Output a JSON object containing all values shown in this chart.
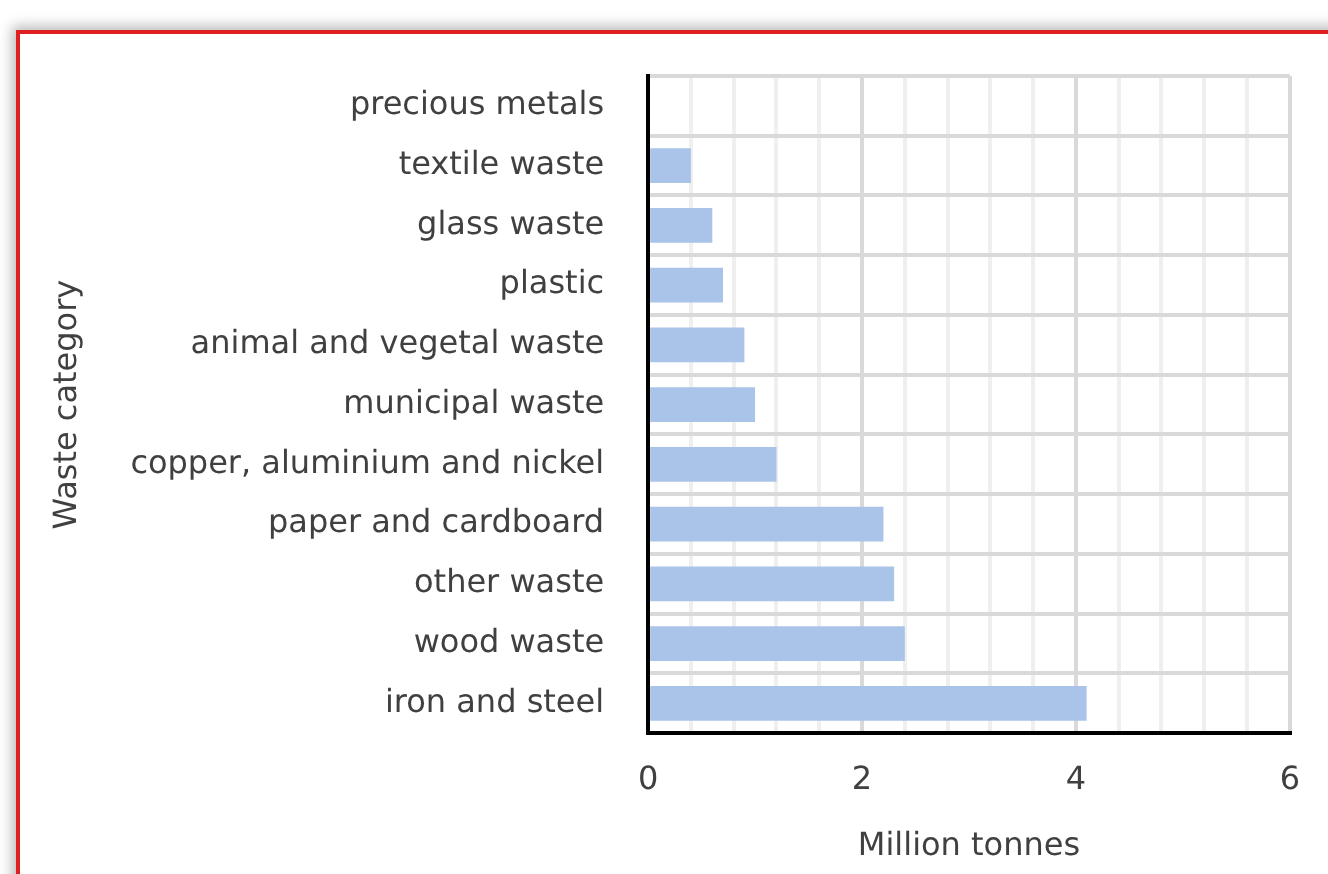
{
  "chart_data": {
    "type": "bar",
    "orientation": "horizontal",
    "xlabel": "Million tonnes",
    "ylabel": "Waste category",
    "categories": [
      "precious metals",
      "textile waste",
      "glass waste",
      "plastic",
      "animal and vegetal waste",
      "municipal waste",
      "copper, aluminium and nickel",
      "paper and cardboard",
      "other waste",
      "wood waste",
      "iron and steel"
    ],
    "values": [
      0,
      0.4,
      0.6,
      0.7,
      0.9,
      1.0,
      1.2,
      2.2,
      2.3,
      2.4,
      4.1
    ],
    "color": "#a9c4e8",
    "xlim": [
      0,
      6
    ],
    "xticks": [
      0,
      {
        "value": 0.4,
        "label": null
      },
      {
        "value": 0.8,
        "label": null
      },
      {
        "value": 1.2,
        "label": null
      },
      {
        "value": 1.6,
        "label": null
      },
      2,
      {
        "value": 2.4,
        "label": null
      },
      {
        "value": 2.8,
        "label": null
      },
      {
        "value": 3.2,
        "label": null
      },
      {
        "value": 3.6,
        "label": null
      },
      4,
      {
        "value": 4.4,
        "label": null
      },
      {
        "value": 4.8,
        "label": null
      },
      {
        "value": 5.2,
        "label": null
      },
      {
        "value": 5.6,
        "label": null
      },
      6
    ],
    "grid": true,
    "legend": false
  }
}
